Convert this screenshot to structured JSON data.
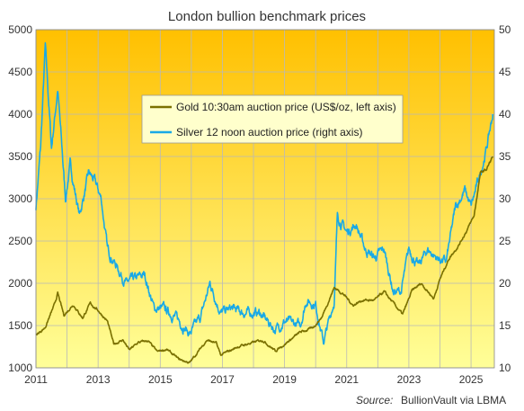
{
  "chart_data": {
    "type": "line",
    "title": "London bullion benchmark prices",
    "source_label": "Source:",
    "source_text": "BullionVault via LBMA",
    "legend_position": "top-center",
    "grid": true,
    "colors": {
      "gold": "#7a7000",
      "silver": "#19a9e6",
      "bg_top": "#ffc000",
      "bg_bottom": "#ffff99",
      "legend_bg": "#ffffcc"
    },
    "x_range": [
      2011,
      2025.75
    ],
    "x_ticks": [
      2011,
      2013,
      2015,
      2017,
      2019,
      2021,
      2023,
      2025
    ],
    "y_left_range": [
      1000,
      5000
    ],
    "y_left_ticks": [
      1000,
      1500,
      2000,
      2500,
      3000,
      3500,
      4000,
      4500,
      5000
    ],
    "y_right_range": [
      10,
      50
    ],
    "y_right_ticks": [
      10,
      15,
      20,
      25,
      30,
      35,
      40,
      45,
      50
    ],
    "series": [
      {
        "name": "Gold 10:30am auction price (US$/oz, left axis)",
        "axis": "left",
        "x": [
          2011.0,
          2011.3,
          2011.6,
          2011.7,
          2011.9,
          2012.2,
          2012.5,
          2012.75,
          2013.0,
          2013.3,
          2013.5,
          2013.8,
          2014.0,
          2014.3,
          2014.6,
          2014.9,
          2015.2,
          2015.6,
          2015.95,
          2016.5,
          2016.8,
          2016.95,
          2017.5,
          2017.9,
          2018.3,
          2018.7,
          2019.0,
          2019.5,
          2019.9,
          2020.2,
          2020.6,
          2020.9,
          2021.2,
          2021.5,
          2021.9,
          2022.2,
          2022.8,
          2023.1,
          2023.4,
          2023.8,
          2024.0,
          2024.3,
          2024.6,
          2024.9,
          2025.1,
          2025.3,
          2025.5,
          2025.7
        ],
        "values": [
          1380,
          1480,
          1750,
          1880,
          1620,
          1750,
          1590,
          1760,
          1680,
          1550,
          1280,
          1330,
          1210,
          1300,
          1320,
          1190,
          1220,
          1100,
          1060,
          1330,
          1290,
          1150,
          1250,
          1290,
          1330,
          1200,
          1280,
          1420,
          1470,
          1600,
          1950,
          1870,
          1740,
          1800,
          1800,
          1900,
          1630,
          1910,
          2000,
          1820,
          2050,
          2300,
          2450,
          2650,
          2800,
          3300,
          3350,
          3500
        ]
      },
      {
        "name": "Silver 12 noon auction price (right axis)",
        "axis": "right",
        "x": [
          2011.0,
          2011.15,
          2011.3,
          2011.5,
          2011.7,
          2011.95,
          2012.1,
          2012.4,
          2012.7,
          2012.9,
          2013.1,
          2013.3,
          2013.6,
          2013.9,
          2014.2,
          2014.5,
          2014.8,
          2015.1,
          2015.5,
          2015.95,
          2016.3,
          2016.6,
          2016.95,
          2017.3,
          2017.7,
          2018.2,
          2018.7,
          2019.0,
          2019.5,
          2019.7,
          2020.0,
          2020.25,
          2020.6,
          2020.7,
          2021.0,
          2021.3,
          2021.6,
          2021.9,
          2022.2,
          2022.5,
          2022.75,
          2023.0,
          2023.3,
          2023.6,
          2023.9,
          2024.2,
          2024.5,
          2024.8,
          2025.0,
          2025.3,
          2025.5,
          2025.7
        ],
        "values": [
          29,
          36,
          48,
          36,
          43,
          30,
          34,
          28,
          33,
          32,
          30,
          24,
          22,
          20,
          20.5,
          21,
          17,
          17,
          16,
          14,
          16,
          20,
          16.5,
          17,
          16.5,
          16.5,
          14.5,
          15.5,
          15,
          18,
          17.5,
          13,
          18,
          28,
          26,
          27,
          24,
          23,
          24,
          19,
          19,
          24,
          22,
          24,
          23,
          22.5,
          29,
          31,
          29,
          33,
          36,
          40
        ]
      }
    ]
  }
}
